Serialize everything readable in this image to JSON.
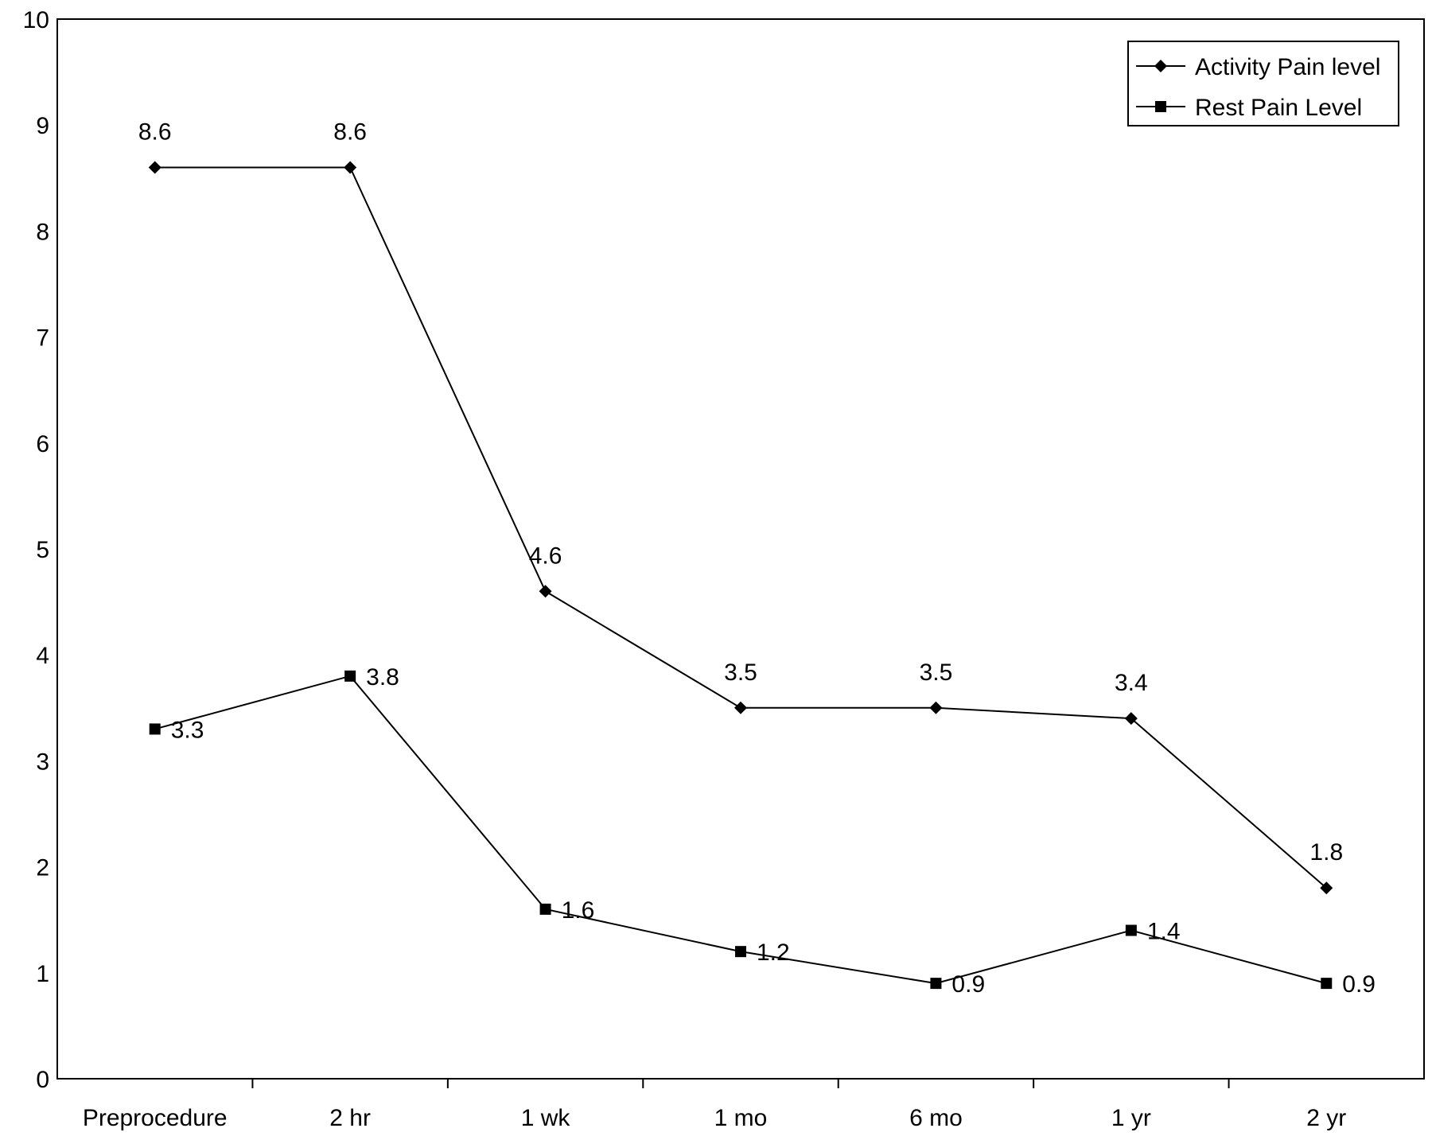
{
  "chart_data": {
    "type": "line",
    "title": "",
    "xlabel": "",
    "ylabel": "",
    "categories": [
      "Preprocedure",
      "2 hr",
      "1 wk",
      "1 mo",
      "6 mo",
      "1 yr",
      "2 yr"
    ],
    "ylim": [
      0,
      10
    ],
    "yticks": [
      0,
      1,
      2,
      3,
      4,
      5,
      6,
      7,
      8,
      9,
      10
    ],
    "grid": false,
    "legend_position": "top-right",
    "series": [
      {
        "name": "Activity Pain level",
        "marker": "diamond",
        "color": "#000000",
        "values": [
          8.6,
          8.6,
          4.6,
          3.5,
          3.5,
          3.4,
          1.8
        ],
        "labels": [
          "8.6",
          "8.6",
          "4.6",
          "3.5",
          "3.5",
          "3.4",
          "1.8"
        ]
      },
      {
        "name": "Rest Pain Level",
        "marker": "square",
        "color": "#000000",
        "values": [
          3.3,
          3.8,
          1.6,
          1.2,
          0.9,
          1.4,
          0.9
        ],
        "labels": [
          "3.3",
          "3.8",
          "1.6",
          "1.2",
          "0.9",
          "1.4",
          "0.9"
        ]
      }
    ]
  }
}
